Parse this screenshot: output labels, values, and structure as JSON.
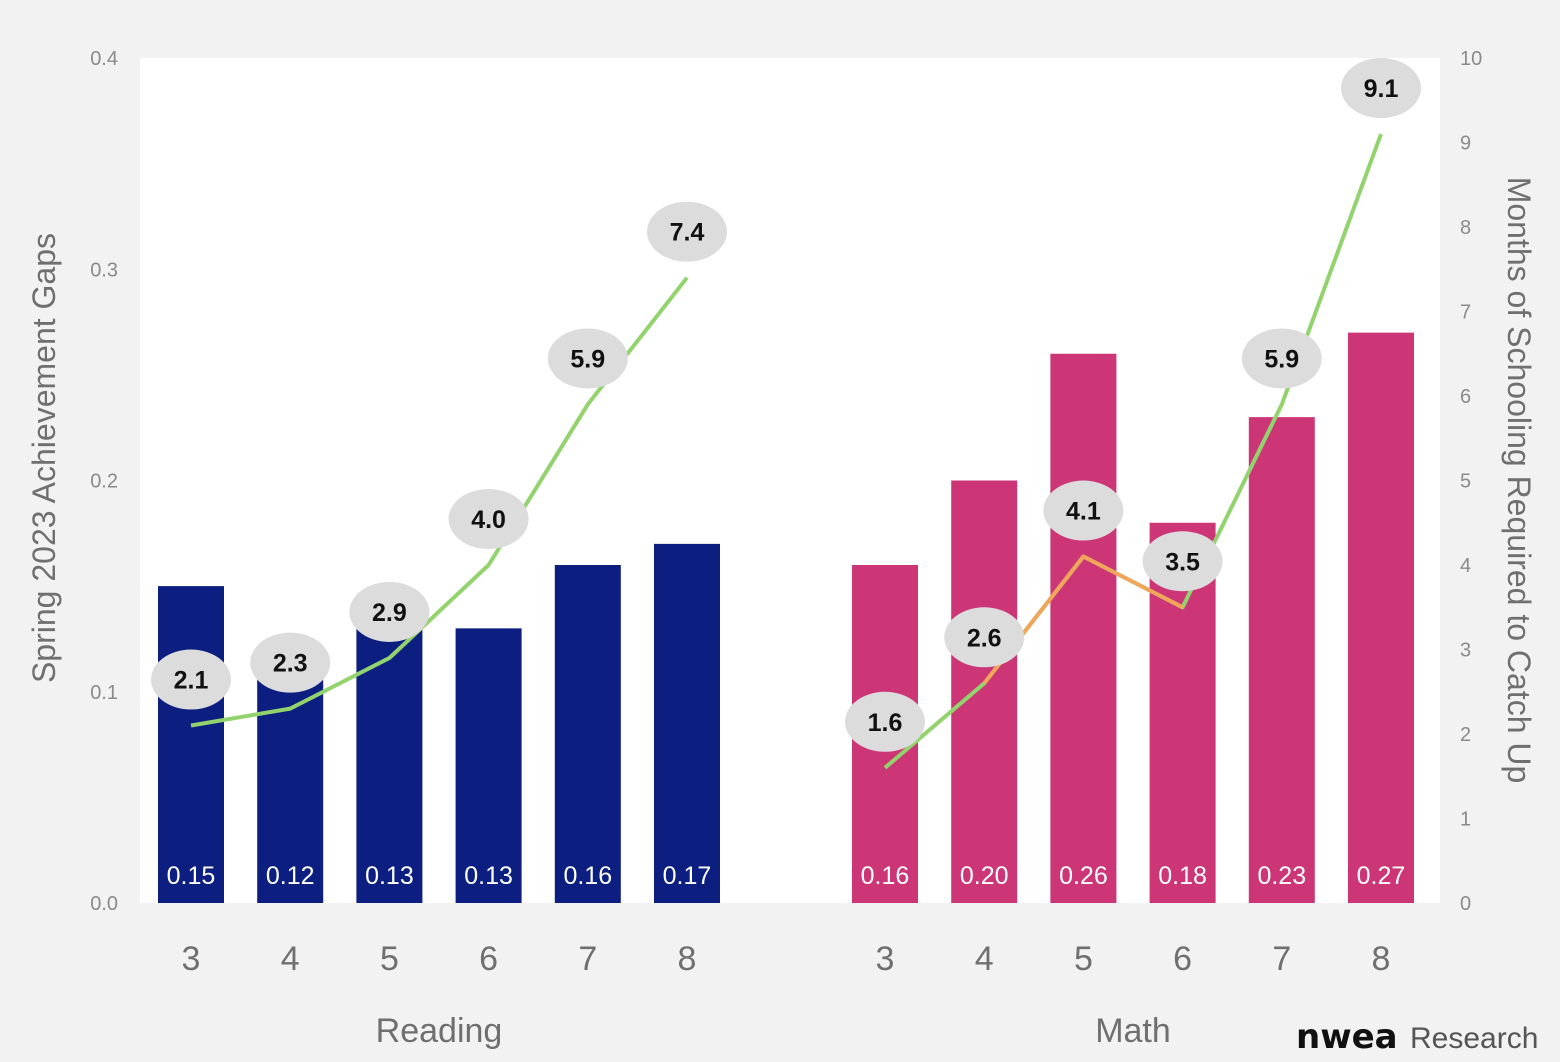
{
  "chart_data": {
    "type": "bar",
    "ylabel": "Spring 2023 Achievement Gaps",
    "y2label": "Months of Schooling Required to Catch Up",
    "ylim": [
      0,
      0.4
    ],
    "y2lim": [
      0,
      10
    ],
    "yticks": [
      "0.0",
      "0.1",
      "0.2",
      "0.3",
      "0.4"
    ],
    "y2ticks": [
      "0",
      "1",
      "2",
      "3",
      "4",
      "5",
      "6",
      "7",
      "8",
      "9",
      "10"
    ],
    "grid": false,
    "groups": [
      {
        "name": "Reading",
        "categories": [
          "3",
          "4",
          "5",
          "6",
          "7",
          "8"
        ],
        "bar_values": [
          0.15,
          0.12,
          0.13,
          0.13,
          0.16,
          0.17
        ],
        "bar_labels": [
          "0.15",
          "0.12",
          "0.13",
          "0.13",
          "0.16",
          "0.17"
        ],
        "bar_color": "#0c1f80",
        "line_values": [
          2.1,
          2.3,
          2.9,
          4.0,
          5.9,
          7.4
        ],
        "line_labels": [
          "2.1",
          "2.3",
          "2.9",
          "4.0",
          "5.9",
          "7.4"
        ]
      },
      {
        "name": "Math",
        "categories": [
          "3",
          "4",
          "5",
          "6",
          "7",
          "8"
        ],
        "bar_values": [
          0.16,
          0.2,
          0.26,
          0.18,
          0.23,
          0.27
        ],
        "bar_labels": [
          "0.16",
          "0.20",
          "0.26",
          "0.18",
          "0.23",
          "0.27"
        ],
        "bar_color": "#cc3677",
        "line_values": [
          1.6,
          2.6,
          4.1,
          3.5,
          5.9,
          9.1
        ],
        "line_labels": [
          "1.6",
          "2.6",
          "4.1",
          "3.5",
          "5.9",
          "9.1"
        ]
      }
    ],
    "line_colors": {
      "green": "#92d36e",
      "orange": "#f0a55a"
    },
    "bubble_color": "#dcdcdc"
  },
  "brand": {
    "bold": "nwea",
    "light": "Research"
  },
  "colors": {
    "plot_bg": "#ffffff",
    "page_bg": "#f2f2f2"
  }
}
